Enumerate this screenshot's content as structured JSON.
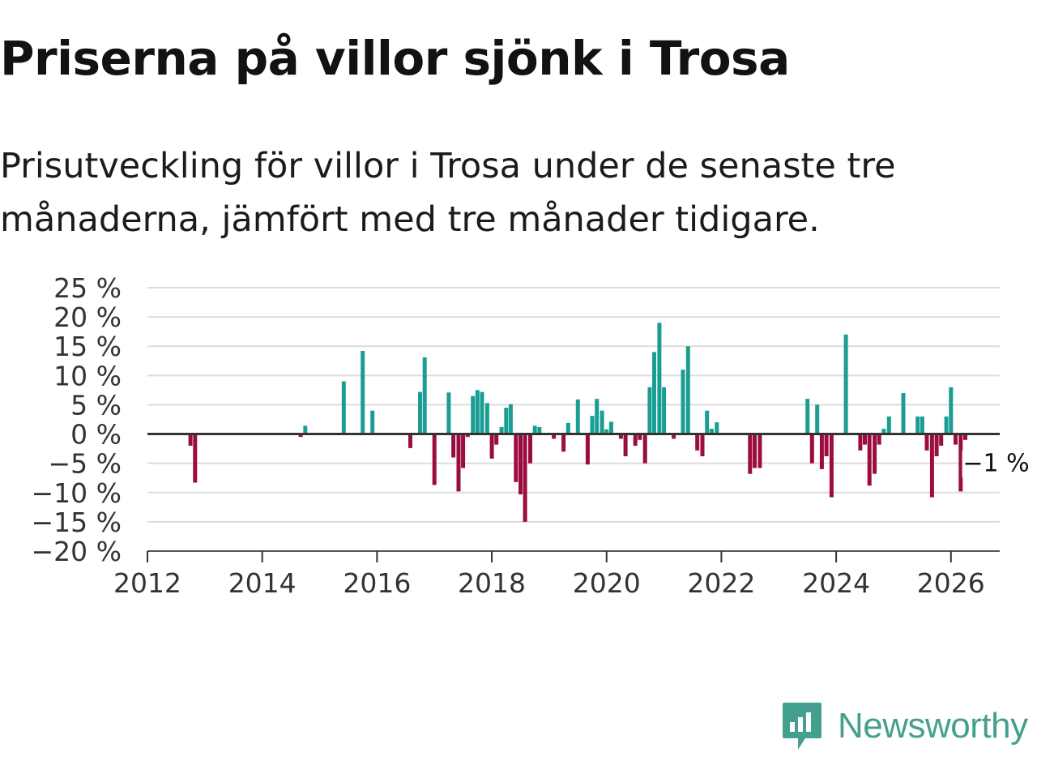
{
  "header": {
    "title": "Priserna på villor sjönk i Trosa",
    "subtitle": "Prisutveckling för villor i Trosa under de senaste tre månaderna, jämfört med tre månader tidigare."
  },
  "brand": {
    "name": "Newsworthy",
    "color": "#44a08e"
  },
  "colors": {
    "positive": "#1a9e93",
    "negative": "#9b0d40",
    "zero_line": "#333333",
    "grid": "#dddddd"
  },
  "chart_data": {
    "type": "bar",
    "title": "Priserna på villor sjönk i Trosa",
    "xlabel": "",
    "ylabel": "",
    "ylim": [
      -20,
      25
    ],
    "xlim": [
      2012,
      2026.85
    ],
    "y_ticks": [
      25,
      20,
      15,
      10,
      5,
      0,
      -5,
      -10,
      -15,
      -20
    ],
    "y_tick_labels": [
      "25 %",
      "20 %",
      "15 %",
      "10 %",
      "5 %",
      "0 %",
      "−5 %",
      "−10 %",
      "−15 %",
      "−20 %"
    ],
    "x_ticks": [
      2012,
      2014,
      2016,
      2018,
      2020,
      2022,
      2024,
      2026
    ],
    "x_tick_labels": [
      "2012",
      "2014",
      "2016",
      "2018",
      "2020",
      "2022",
      "2024",
      "2026"
    ],
    "grid": true,
    "last_value_label": "−1 %",
    "series": [
      {
        "name": "Prisutveckling",
        "points": [
          {
            "x": 2012.75,
            "y": -2
          },
          {
            "x": 2012.83,
            "y": -8.3
          },
          {
            "x": 2014.67,
            "y": -0.5
          },
          {
            "x": 2014.75,
            "y": 1.4
          },
          {
            "x": 2015.42,
            "y": 9
          },
          {
            "x": 2015.75,
            "y": 14.2
          },
          {
            "x": 2015.92,
            "y": 4
          },
          {
            "x": 2016.58,
            "y": -2.4
          },
          {
            "x": 2016.75,
            "y": 7.2
          },
          {
            "x": 2016.83,
            "y": 13.1
          },
          {
            "x": 2016.92,
            "y": 0
          },
          {
            "x": 2017.0,
            "y": -8.7
          },
          {
            "x": 2017.17,
            "y": 0
          },
          {
            "x": 2017.25,
            "y": 7.1
          },
          {
            "x": 2017.33,
            "y": -4
          },
          {
            "x": 2017.42,
            "y": -9.8
          },
          {
            "x": 2017.5,
            "y": -5.8
          },
          {
            "x": 2017.58,
            "y": -0.5
          },
          {
            "x": 2017.67,
            "y": 6.5
          },
          {
            "x": 2017.75,
            "y": 7.5
          },
          {
            "x": 2017.83,
            "y": 7.2
          },
          {
            "x": 2017.92,
            "y": 5.3
          },
          {
            "x": 2018.0,
            "y": -4.2
          },
          {
            "x": 2018.08,
            "y": -1.8
          },
          {
            "x": 2018.17,
            "y": 1.2
          },
          {
            "x": 2018.25,
            "y": 4.5
          },
          {
            "x": 2018.33,
            "y": 5.1
          },
          {
            "x": 2018.42,
            "y": -8.2
          },
          {
            "x": 2018.5,
            "y": -10.3
          },
          {
            "x": 2018.58,
            "y": -15
          },
          {
            "x": 2018.67,
            "y": -5
          },
          {
            "x": 2018.75,
            "y": 1.4
          },
          {
            "x": 2018.83,
            "y": 1.2
          },
          {
            "x": 2019.08,
            "y": -0.8
          },
          {
            "x": 2019.25,
            "y": -3
          },
          {
            "x": 2019.33,
            "y": 1.9
          },
          {
            "x": 2019.5,
            "y": 5.9
          },
          {
            "x": 2019.67,
            "y": -5.2
          },
          {
            "x": 2019.75,
            "y": 3.1
          },
          {
            "x": 2019.83,
            "y": 6
          },
          {
            "x": 2019.92,
            "y": 4
          },
          {
            "x": 2020.0,
            "y": 0.8
          },
          {
            "x": 2020.08,
            "y": 2.1
          },
          {
            "x": 2020.25,
            "y": -0.8
          },
          {
            "x": 2020.33,
            "y": -3.8
          },
          {
            "x": 2020.5,
            "y": -2
          },
          {
            "x": 2020.58,
            "y": -1
          },
          {
            "x": 2020.67,
            "y": -5
          },
          {
            "x": 2020.75,
            "y": 8
          },
          {
            "x": 2020.83,
            "y": 14
          },
          {
            "x": 2020.92,
            "y": 19
          },
          {
            "x": 2021.0,
            "y": 8
          },
          {
            "x": 2021.17,
            "y": -0.8
          },
          {
            "x": 2021.33,
            "y": 11
          },
          {
            "x": 2021.42,
            "y": 15
          },
          {
            "x": 2021.58,
            "y": -2.8
          },
          {
            "x": 2021.67,
            "y": -3.8
          },
          {
            "x": 2021.75,
            "y": 4
          },
          {
            "x": 2021.83,
            "y": 0.9
          },
          {
            "x": 2021.92,
            "y": 2
          },
          {
            "x": 2022.5,
            "y": -6.8
          },
          {
            "x": 2022.58,
            "y": -5.8
          },
          {
            "x": 2022.67,
            "y": -5.8
          },
          {
            "x": 2023.5,
            "y": 6
          },
          {
            "x": 2023.58,
            "y": -5
          },
          {
            "x": 2023.67,
            "y": 5
          },
          {
            "x": 2023.75,
            "y": -6
          },
          {
            "x": 2023.83,
            "y": -3.8
          },
          {
            "x": 2023.92,
            "y": -10.8
          },
          {
            "x": 2024.17,
            "y": 17
          },
          {
            "x": 2024.42,
            "y": -2.8
          },
          {
            "x": 2024.5,
            "y": -1.8
          },
          {
            "x": 2024.58,
            "y": -8.8
          },
          {
            "x": 2024.67,
            "y": -6.8
          },
          {
            "x": 2024.75,
            "y": -1.8
          },
          {
            "x": 2024.83,
            "y": 0.9
          },
          {
            "x": 2024.92,
            "y": 3
          },
          {
            "x": 2025.17,
            "y": 7
          },
          {
            "x": 2025.42,
            "y": 3
          },
          {
            "x": 2025.5,
            "y": 3
          },
          {
            "x": 2025.58,
            "y": -2.8
          },
          {
            "x": 2025.67,
            "y": -10.8
          },
          {
            "x": 2025.75,
            "y": -3.8
          },
          {
            "x": 2025.83,
            "y": -2
          },
          {
            "x": 2025.92,
            "y": 3
          },
          {
            "x": 2026.0,
            "y": 8
          },
          {
            "x": 2026.08,
            "y": -1.8
          },
          {
            "x": 2026.17,
            "y": -9.8
          },
          {
            "x": 2026.25,
            "y": -1
          }
        ]
      }
    ]
  }
}
